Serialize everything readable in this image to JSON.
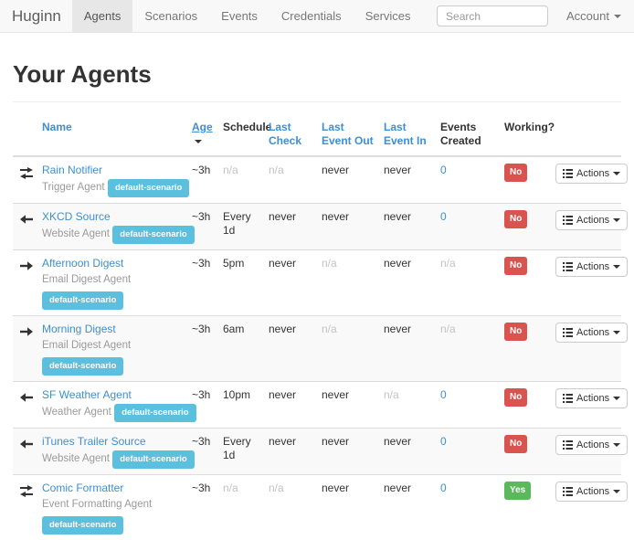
{
  "navbar": {
    "brand": "Huginn",
    "items": [
      {
        "label": "Agents",
        "active": true
      },
      {
        "label": "Scenarios",
        "active": false
      },
      {
        "label": "Events",
        "active": false
      },
      {
        "label": "Credentials",
        "active": false
      },
      {
        "label": "Services",
        "active": false
      }
    ],
    "search_placeholder": "Search",
    "account_label": "Account"
  },
  "page_title": "Your Agents",
  "table": {
    "headers": [
      {
        "key": "name",
        "label": "Name",
        "link": true
      },
      {
        "key": "age",
        "label": "Age",
        "link": true,
        "sorted": "desc"
      },
      {
        "key": "schedule",
        "label": "Schedule",
        "link": false
      },
      {
        "key": "last_check",
        "label": "Last Check",
        "link": true
      },
      {
        "key": "last_event_out",
        "label": "Last Event Out",
        "link": true
      },
      {
        "key": "last_event_in",
        "label": "Last Event In",
        "link": true
      },
      {
        "key": "events_created",
        "label": "Events Created",
        "link": false
      },
      {
        "key": "working",
        "label": "Working?",
        "link": false
      }
    ],
    "actions_label": "Actions",
    "rows": [
      {
        "icon": "transfer-icon",
        "name": "Rain Notifier",
        "type": "Trigger Agent",
        "scenario": "default-scenario",
        "age": "~3h",
        "schedule": "n/a",
        "last_check": "n/a",
        "last_event_out": "never",
        "last_event_in": "never",
        "events_created": "0",
        "working": "No"
      },
      {
        "icon": "arrow-left-icon",
        "name": "XKCD Source",
        "type": "Website Agent",
        "scenario": "default-scenario",
        "age": "~3h",
        "schedule": "Every 1d",
        "last_check": "never",
        "last_event_out": "never",
        "last_event_in": "never",
        "events_created": "0",
        "working": "No"
      },
      {
        "icon": "arrow-right-icon",
        "name": "Afternoon Digest",
        "type": "Email Digest Agent",
        "scenario": "default-scenario",
        "age": "~3h",
        "schedule": "5pm",
        "last_check": "never",
        "last_event_out": "n/a",
        "last_event_in": "never",
        "events_created": "n/a",
        "working": "No"
      },
      {
        "icon": "arrow-right-icon",
        "name": "Morning Digest",
        "type": "Email Digest Agent",
        "scenario": "default-scenario",
        "age": "~3h",
        "schedule": "6am",
        "last_check": "never",
        "last_event_out": "n/a",
        "last_event_in": "never",
        "events_created": "n/a",
        "working": "No"
      },
      {
        "icon": "arrow-left-icon",
        "name": "SF Weather Agent",
        "type": "Weather Agent",
        "scenario": "default-scenario",
        "age": "~3h",
        "schedule": "10pm",
        "last_check": "never",
        "last_event_out": "never",
        "last_event_in": "n/a",
        "events_created": "0",
        "working": "No"
      },
      {
        "icon": "arrow-left-icon",
        "name": "iTunes Trailer Source",
        "type": "Website Agent",
        "scenario": "default-scenario",
        "age": "~3h",
        "schedule": "Every 1d",
        "last_check": "never",
        "last_event_out": "never",
        "last_event_in": "never",
        "events_created": "0",
        "working": "No"
      },
      {
        "icon": "transfer-icon",
        "name": "Comic Formatter",
        "type": "Event Formatting Agent",
        "scenario": "default-scenario",
        "age": "~3h",
        "schedule": "n/a",
        "last_check": "n/a",
        "last_event_out": "never",
        "last_event_in": "never",
        "events_created": "0",
        "working": "Yes"
      }
    ]
  },
  "colors": {
    "link": "#3d8fd1",
    "badge_info": "#5bc0de",
    "label_danger": "#d9534f",
    "label_success": "#5cb85c",
    "navbar_bg": "#f8f8f8",
    "navbar_border": "#e7e7e7"
  }
}
